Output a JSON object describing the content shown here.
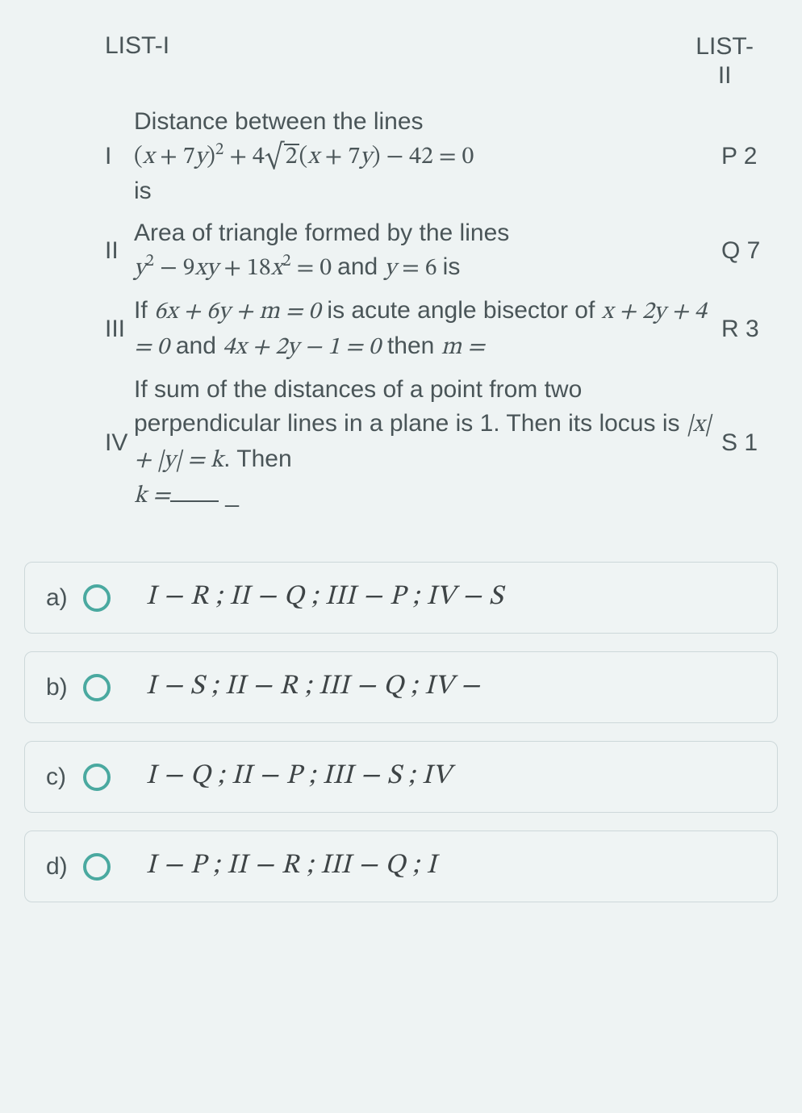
{
  "colors": {
    "background": "#eef3f3",
    "text": "#4a5558",
    "option_border": "#cdd8da",
    "option_bg": "#eff4f4",
    "radio_ring": "#4aa9a0"
  },
  "typography": {
    "body_fontsize": 30,
    "option_fontsize": 34
  },
  "header": {
    "left": "LIST-I",
    "right_line1": "LIST-",
    "right_line2": "II"
  },
  "rows": [
    {
      "num": "I",
      "lead": "Distance between the lines",
      "eq_open": "(",
      "eq_var1": "x",
      "eq_plus1": " + 7",
      "eq_var2": "y",
      "eq_close_sq": ")",
      "eq_sup": "2",
      "eq_plus2": " + 4",
      "eq_sqrt": "2",
      "eq_paren2_open": "(",
      "eq_var3": "x",
      "eq_plus3": " + 7",
      "eq_var4": "y",
      "eq_paren2_close": ") − 42 = 0",
      "trail": "is",
      "code": "P 2"
    },
    {
      "num": "II",
      "lead": "Area of triangle formed by the lines",
      "eq_a": "y",
      "eq_a_sup": "2",
      "eq_b": " − 9",
      "eq_c": "xy",
      "eq_d": " + 18",
      "eq_e": "x",
      "eq_e_sup": "2",
      "eq_f": " = 0",
      "mid": " and ",
      "eq_g": "y",
      "eq_h": " = 6",
      "trail": " is",
      "code": "Q 7"
    },
    {
      "num": "III",
      "t1": "If ",
      "e1": "6x + 6y + m = 0",
      "t2": " is acute angle bisector of ",
      "e2": "x + 2y + 4 = 0",
      "t3": " and ",
      "e3": "4x + 2y − 1 = 0",
      "t4": " then ",
      "e4": "m =",
      "code": "R 3"
    },
    {
      "num": "IV",
      "t1": "If sum of the distances of a point from two perpendicular lines in a plane is 1. Then its locus is ",
      "e1": "|x| + |y| = k",
      "t2": ". Then ",
      "e2": "k =",
      "blank_suffix": " _",
      "code": "S 1"
    }
  ],
  "options": [
    {
      "label": "a)",
      "text": "I − R ; II − Q ; III − P ; IV − S"
    },
    {
      "label": "b)",
      "text": "I − S ; II − R ; III − Q ; IV −"
    },
    {
      "label": "c)",
      "text": "I − Q ; II − P ; III − S ; IV"
    },
    {
      "label": "d)",
      "text": "I − P ; II − R ; III − Q ; I"
    }
  ]
}
